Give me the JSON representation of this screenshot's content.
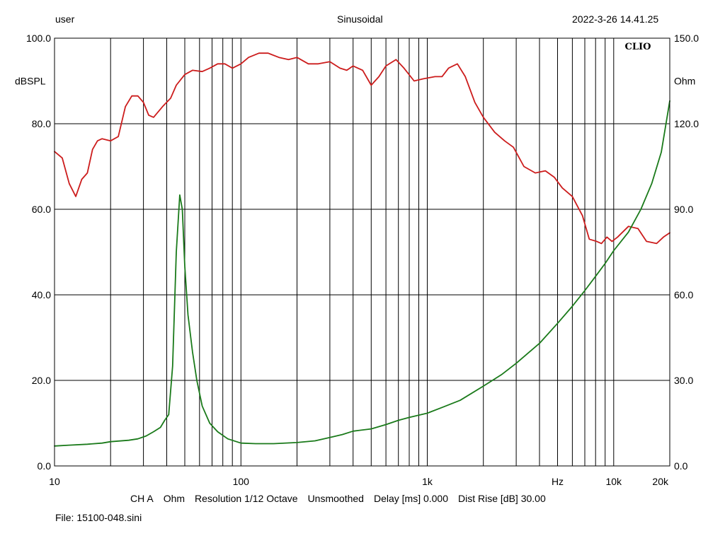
{
  "header": {
    "left": "user",
    "center": "Sinusoidal",
    "right": "2022-3-26 14.41.25"
  },
  "footer": {
    "channel": "CH A",
    "unit": "Ohm",
    "resolution": "Resolution 1/12 Octave",
    "smoothing": "Unsmoothed",
    "delay": "Delay [ms] 0.000",
    "dist_rise": "Dist Rise [dB] 30.00"
  },
  "file_label": "File: 15100-048.sini",
  "colors": {
    "spl": "#cc1c1c",
    "impedance": "#1a7a1a",
    "grid": "#000000"
  },
  "chart_data": {
    "type": "line",
    "title": "",
    "brand": "CLIO",
    "xscale": "log",
    "xlim": [
      10,
      20000
    ],
    "x_ticks": [
      {
        "v": 10,
        "label": "10"
      },
      {
        "v": 100,
        "label": "100"
      },
      {
        "v": 1000,
        "label": "1k"
      },
      {
        "v": 10000,
        "label": "10k"
      },
      {
        "v": 20000,
        "label": "20k"
      }
    ],
    "x_unit_label": "Hz",
    "x_unit_pos": 5000,
    "y_left": {
      "label": "dBSPL",
      "lim": [
        0,
        100
      ],
      "ticks": [
        "0.0",
        "20.0",
        "40.0",
        "60.0",
        "80.0",
        "100.0"
      ]
    },
    "y_right": {
      "label": "Ohm",
      "lim": [
        0,
        150
      ],
      "ticks": [
        "0.0",
        "30.0",
        "60.0",
        "90.0",
        "120.0",
        "150.0"
      ]
    },
    "grid": true,
    "series": [
      {
        "axis": "left",
        "color": "#cc1c1c",
        "points": [
          [
            10,
            73.5
          ],
          [
            11,
            72
          ],
          [
            12,
            66
          ],
          [
            13,
            63
          ],
          [
            14,
            67
          ],
          [
            15,
            68.5
          ],
          [
            16,
            74
          ],
          [
            17,
            76
          ],
          [
            18,
            76.5
          ],
          [
            20,
            76
          ],
          [
            22,
            77
          ],
          [
            24,
            84
          ],
          [
            26,
            86.5
          ],
          [
            28,
            86.5
          ],
          [
            30,
            85
          ],
          [
            32,
            82
          ],
          [
            34,
            81.5
          ],
          [
            38,
            84
          ],
          [
            42,
            86
          ],
          [
            45,
            89
          ],
          [
            50,
            91.5
          ],
          [
            55,
            92.5
          ],
          [
            62,
            92.2
          ],
          [
            68,
            93
          ],
          [
            75,
            94
          ],
          [
            82,
            94
          ],
          [
            90,
            93
          ],
          [
            100,
            94
          ],
          [
            110,
            95.5
          ],
          [
            125,
            96.5
          ],
          [
            140,
            96.5
          ],
          [
            160,
            95.5
          ],
          [
            180,
            95
          ],
          [
            200,
            95.5
          ],
          [
            230,
            94
          ],
          [
            260,
            94
          ],
          [
            300,
            94.5
          ],
          [
            340,
            93
          ],
          [
            370,
            92.5
          ],
          [
            400,
            93.5
          ],
          [
            450,
            92.5
          ],
          [
            500,
            89
          ],
          [
            550,
            91
          ],
          [
            600,
            93.5
          ],
          [
            680,
            95
          ],
          [
            750,
            93
          ],
          [
            850,
            90
          ],
          [
            950,
            90.5
          ],
          [
            1100,
            91
          ],
          [
            1200,
            91
          ],
          [
            1300,
            93
          ],
          [
            1450,
            94
          ],
          [
            1600,
            91
          ],
          [
            1800,
            85
          ],
          [
            2000,
            81.5
          ],
          [
            2300,
            78
          ],
          [
            2600,
            76
          ],
          [
            2900,
            74.5
          ],
          [
            3300,
            70
          ],
          [
            3800,
            68.5
          ],
          [
            4300,
            69
          ],
          [
            4800,
            67.5
          ],
          [
            5300,
            65
          ],
          [
            6000,
            63
          ],
          [
            6800,
            58.5
          ],
          [
            7400,
            53
          ],
          [
            8100,
            52.5
          ],
          [
            8600,
            52
          ],
          [
            9200,
            53.5
          ],
          [
            9800,
            52.5
          ],
          [
            10500,
            53.5
          ],
          [
            12000,
            56
          ],
          [
            13500,
            55.5
          ],
          [
            15000,
            52.5
          ],
          [
            17000,
            52
          ],
          [
            18500,
            53.5
          ],
          [
            20000,
            54.5
          ]
        ]
      },
      {
        "axis": "right",
        "color": "#1a7a1a",
        "points": [
          [
            10,
            7
          ],
          [
            12,
            7.3
          ],
          [
            15,
            7.6
          ],
          [
            18,
            8
          ],
          [
            20,
            8.5
          ],
          [
            25,
            9
          ],
          [
            28,
            9.5
          ],
          [
            31,
            10.5
          ],
          [
            34,
            12
          ],
          [
            37,
            13.5
          ],
          [
            39,
            16
          ],
          [
            41,
            18
          ],
          [
            43,
            35
          ],
          [
            45,
            75
          ],
          [
            47,
            95
          ],
          [
            48.5,
            90
          ],
          [
            50,
            70
          ],
          [
            52,
            53
          ],
          [
            55,
            40
          ],
          [
            58,
            30
          ],
          [
            62,
            21
          ],
          [
            68,
            15
          ],
          [
            75,
            12
          ],
          [
            85,
            9.5
          ],
          [
            100,
            8
          ],
          [
            120,
            7.8
          ],
          [
            150,
            7.8
          ],
          [
            200,
            8.2
          ],
          [
            250,
            8.8
          ],
          [
            300,
            10
          ],
          [
            350,
            11
          ],
          [
            400,
            12.2
          ],
          [
            500,
            13
          ],
          [
            600,
            14.5
          ],
          [
            700,
            16
          ],
          [
            800,
            17
          ],
          [
            1000,
            18.5
          ],
          [
            1200,
            20.5
          ],
          [
            1500,
            23
          ],
          [
            2000,
            28
          ],
          [
            2500,
            32
          ],
          [
            3000,
            36
          ],
          [
            4000,
            43
          ],
          [
            5000,
            50
          ],
          [
            6000,
            56
          ],
          [
            7000,
            61.5
          ],
          [
            8000,
            66.5
          ],
          [
            9000,
            71
          ],
          [
            10000,
            75.5
          ],
          [
            12000,
            82
          ],
          [
            14000,
            90
          ],
          [
            16000,
            99
          ],
          [
            18000,
            110
          ],
          [
            20000,
            128
          ]
        ]
      }
    ]
  }
}
